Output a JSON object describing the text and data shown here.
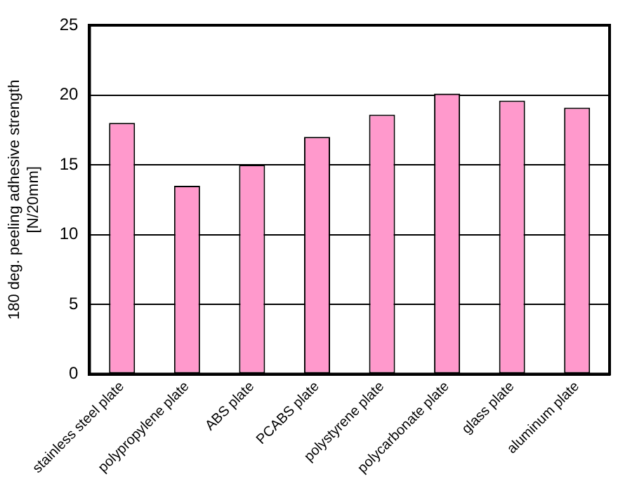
{
  "chart_data": {
    "type": "bar",
    "ylabel": "180 deg. peeling adhesive strength\n[N/20mm]",
    "categories": [
      "stainless steel plate",
      "polypropylene plate",
      "ABS plate",
      "PCABS plate",
      "polystyrene plate",
      "polycarbonate plate",
      "glass plate",
      "aluminum plate"
    ],
    "values": [
      18,
      13.5,
      15,
      17,
      18.6,
      20.1,
      19.6,
      19.1
    ],
    "color": "#ff99cc",
    "ylim": [
      0,
      25
    ],
    "yticks": [
      0,
      5,
      10,
      15,
      20,
      25
    ],
    "grid": "y"
  }
}
